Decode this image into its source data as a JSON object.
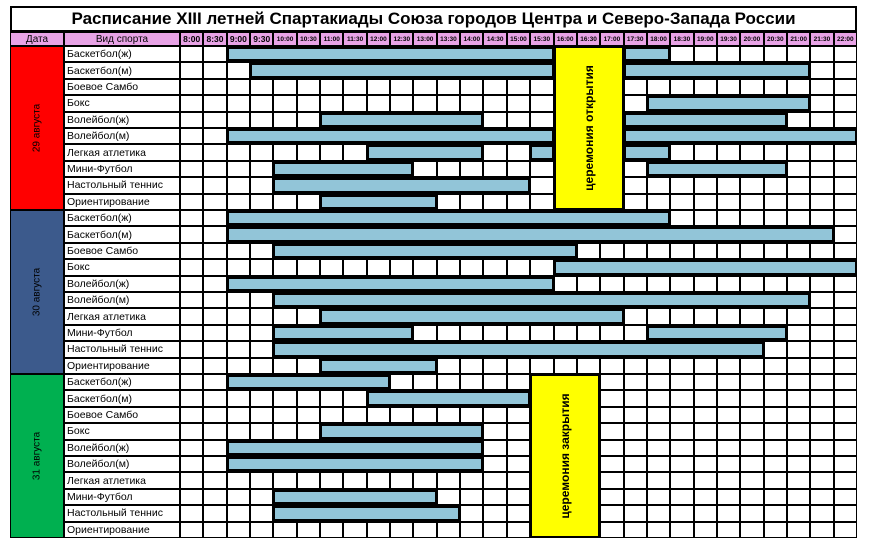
{
  "title": "Расписание XIII летней Спартакиады Союза городов Центра и Северо-Запада России",
  "headers": {
    "date": "Дата",
    "sport": "Вид спорта"
  },
  "times": [
    "8:00",
    "8:30",
    "9:00",
    "9:30",
    "10:00",
    "10:30",
    "11:00",
    "11:30",
    "12:00",
    "12:30",
    "13:00",
    "13:30",
    "14:00",
    "14:30",
    "15:00",
    "15:30",
    "16:00",
    "16:30",
    "17:00",
    "17:30",
    "18:00",
    "18:30",
    "19:00",
    "19:30",
    "20:00",
    "20:30",
    "21:00",
    "21:30",
    "22:00"
  ],
  "colors": {
    "header": "#e8a3e6",
    "bar": "#92c5d8",
    "ceremony": "#ffff00"
  },
  "days": [
    {
      "label": "29 августа",
      "color": "#ff0000",
      "ceremony": {
        "label": "церемония открытия",
        "start": 16,
        "end": 19
      },
      "sports": [
        {
          "name": "Баскетбол(ж)",
          "bars": [
            [
              2,
              16
            ],
            [
              19,
              21
            ]
          ]
        },
        {
          "name": "Баскетбол(м)",
          "bars": [
            [
              3,
              16
            ],
            [
              19,
              27
            ]
          ]
        },
        {
          "name": "Боевое Самбо",
          "bars": []
        },
        {
          "name": "Бокс",
          "bars": [
            [
              20,
              27
            ]
          ]
        },
        {
          "name": "Волейбол(ж)",
          "bars": [
            [
              6,
              13
            ],
            [
              19,
              26
            ]
          ]
        },
        {
          "name": "Волейбол(м)",
          "bars": [
            [
              2,
              16
            ],
            [
              19,
              29
            ]
          ]
        },
        {
          "name": "Легкая атлетика",
          "bars": [
            [
              8,
              13
            ],
            [
              15,
              16
            ],
            [
              19,
              21
            ]
          ]
        },
        {
          "name": "Мини-Футбол",
          "bars": [
            [
              4,
              10
            ],
            [
              20,
              26
            ]
          ]
        },
        {
          "name": "Настольный теннис",
          "bars": [
            [
              4,
              15
            ]
          ]
        },
        {
          "name": "Ориентирование",
          "bars": [
            [
              6,
              11
            ]
          ]
        }
      ]
    },
    {
      "label": "30 августа",
      "color": "#3c5a8c",
      "sports": [
        {
          "name": "Баскетбол(ж)",
          "bars": [
            [
              2,
              21
            ]
          ]
        },
        {
          "name": "Баскетбол(м)",
          "bars": [
            [
              2,
              28
            ]
          ]
        },
        {
          "name": "Боевое Самбо",
          "bars": [
            [
              4,
              17
            ]
          ]
        },
        {
          "name": "Бокс",
          "bars": [
            [
              16,
              29
            ]
          ]
        },
        {
          "name": "Волейбол(ж)",
          "bars": [
            [
              2,
              16
            ]
          ]
        },
        {
          "name": "Волейбол(м)",
          "bars": [
            [
              4,
              27
            ]
          ]
        },
        {
          "name": "Легкая атлетика",
          "bars": [
            [
              6,
              19
            ]
          ]
        },
        {
          "name": "Мини-Футбол",
          "bars": [
            [
              4,
              10
            ],
            [
              20,
              26
            ]
          ]
        },
        {
          "name": "Настольный теннис",
          "bars": [
            [
              4,
              25
            ]
          ]
        },
        {
          "name": "Ориентирование",
          "bars": [
            [
              6,
              11
            ]
          ]
        }
      ]
    },
    {
      "label": "31 августа",
      "color": "#00b050",
      "ceremony": {
        "label": "церемония закрытия",
        "start": 15,
        "end": 18
      },
      "sports": [
        {
          "name": "Баскетбол(ж)",
          "bars": [
            [
              2,
              9
            ]
          ]
        },
        {
          "name": "Баскетбол(м)",
          "bars": [
            [
              8,
              15
            ]
          ]
        },
        {
          "name": "Боевое Самбо",
          "bars": []
        },
        {
          "name": "Бокс",
          "bars": [
            [
              6,
              13
            ]
          ]
        },
        {
          "name": "Волейбол(ж)",
          "bars": [
            [
              2,
              13
            ]
          ]
        },
        {
          "name": "Волейбол(м)",
          "bars": [
            [
              2,
              13
            ]
          ]
        },
        {
          "name": "Легкая атлетика",
          "bars": []
        },
        {
          "name": "Мини-Футбол",
          "bars": [
            [
              4,
              11
            ]
          ]
        },
        {
          "name": "Настольный теннис",
          "bars": [
            [
              4,
              12
            ]
          ]
        },
        {
          "name": "Ориентирование",
          "bars": []
        }
      ]
    }
  ]
}
